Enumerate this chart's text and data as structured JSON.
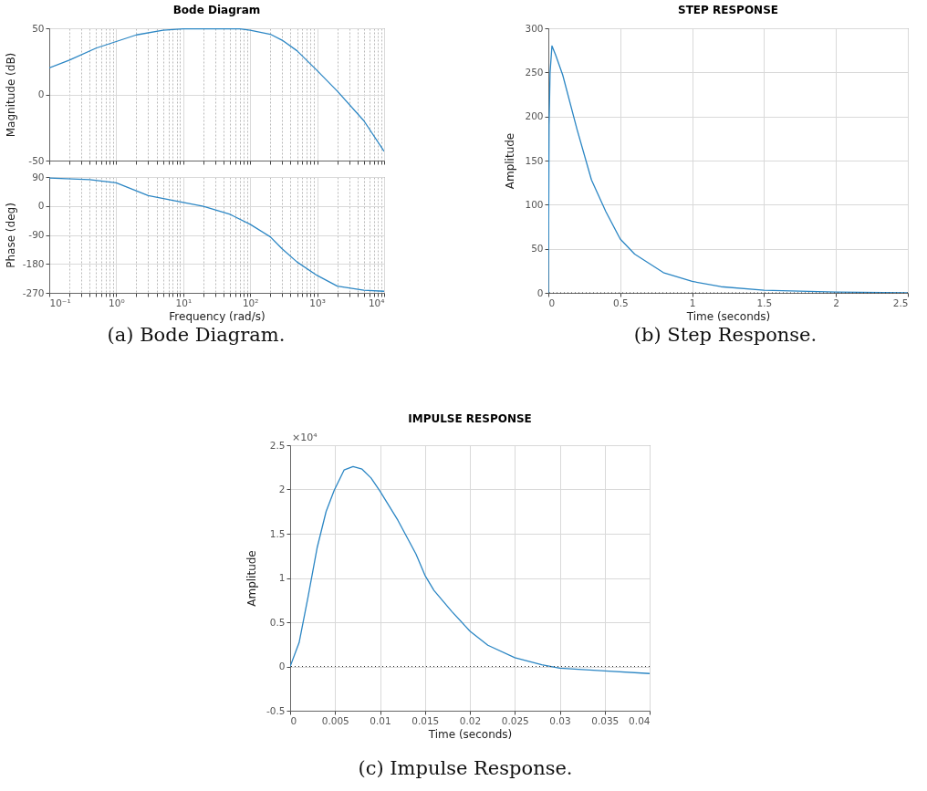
{
  "chart_data": [
    {
      "type": "line",
      "title": "Bode Diagram",
      "ylabel": "Magnitude (dB)",
      "log": "x",
      "grid": true,
      "tick_labels": "y",
      "x": [
        0.1,
        0.2,
        0.5,
        1,
        2,
        5,
        10,
        30,
        70,
        100,
        200,
        300,
        500,
        1000,
        2000,
        5000,
        10000
      ],
      "series": [
        {
          "color": "#2b86c4",
          "values": [
            20,
            26,
            35,
            40,
            45,
            48.5,
            49.5,
            49.8,
            49.5,
            48.5,
            45.5,
            41,
            33,
            18,
            2.5,
            -20,
            -43
          ]
        }
      ],
      "xlim": [
        0.1,
        10000
      ],
      "ylim": [
        -50,
        50
      ],
      "yticks": [
        -50,
        0,
        50
      ],
      "xticks": [
        {
          "value": 0.1,
          "label": null
        },
        {
          "value": 0.2,
          "label": null
        },
        {
          "value": 0.3,
          "label": null
        },
        {
          "value": 0.4,
          "label": null
        },
        {
          "value": 0.5,
          "label": null
        },
        {
          "value": 0.6,
          "label": null
        },
        {
          "value": 0.7,
          "label": null
        },
        {
          "value": 0.8,
          "label": null
        },
        {
          "value": 0.9,
          "label": null
        },
        {
          "value": 1,
          "label": null
        },
        {
          "value": 2,
          "label": null
        },
        {
          "value": 3,
          "label": null
        },
        {
          "value": 4,
          "label": null
        },
        {
          "value": 5,
          "label": null
        },
        {
          "value": 6,
          "label": null
        },
        {
          "value": 7,
          "label": null
        },
        {
          "value": 8,
          "label": null
        },
        {
          "value": 9,
          "label": null
        },
        {
          "value": 10,
          "label": null
        },
        {
          "value": 20,
          "label": null
        },
        {
          "value": 30,
          "label": null
        },
        {
          "value": 40,
          "label": null
        },
        {
          "value": 50,
          "label": null
        },
        {
          "value": 60,
          "label": null
        },
        {
          "value": 70,
          "label": null
        },
        {
          "value": 80,
          "label": null
        },
        {
          "value": 90,
          "label": null
        },
        {
          "value": 100,
          "label": null
        },
        {
          "value": 200,
          "label": null
        },
        {
          "value": 300,
          "label": null
        },
        {
          "value": 400,
          "label": null
        },
        {
          "value": 500,
          "label": null
        },
        {
          "value": 600,
          "label": null
        },
        {
          "value": 700,
          "label": null
        },
        {
          "value": 800,
          "label": null
        },
        {
          "value": 900,
          "label": null
        },
        {
          "value": 1000,
          "label": null
        },
        {
          "value": 2000,
          "label": null
        },
        {
          "value": 3000,
          "label": null
        },
        {
          "value": 4000,
          "label": null
        },
        {
          "value": 5000,
          "label": null
        },
        {
          "value": 6000,
          "label": null
        },
        {
          "value": 7000,
          "label": null
        },
        {
          "value": 8000,
          "label": null
        },
        {
          "value": 9000,
          "label": null
        },
        {
          "value": 10000,
          "label": null
        }
      ]
    },
    {
      "type": "line",
      "xlabel": "Frequency  (rad/s)",
      "ylabel": "Phase (deg)",
      "log": "x",
      "grid": true,
      "annotations": [
        "(a) Bode Diagram."
      ],
      "x": [
        0.1,
        0.4,
        1,
        3,
        10,
        20,
        50,
        100,
        200,
        300,
        500,
        1000,
        2000,
        5000,
        10000
      ],
      "series": [
        {
          "color": "#2b86c4",
          "values": [
            87,
            82,
            72,
            32,
            11,
            -1,
            -26,
            -57,
            -96,
            -133,
            -174,
            -216,
            -249,
            -262,
            -265
          ]
        }
      ],
      "xlim": [
        0.1,
        10000
      ],
      "ylim": [
        -270,
        90
      ],
      "yticks": [
        -270,
        -180,
        -90,
        0,
        90
      ],
      "xticks": [
        {
          "value": 0.1,
          "label": "10⁻¹"
        },
        {
          "value": 0.2,
          "label": null
        },
        {
          "value": 0.3,
          "label": null
        },
        {
          "value": 0.4,
          "label": null
        },
        {
          "value": 0.5,
          "label": null
        },
        {
          "value": 0.6,
          "label": null
        },
        {
          "value": 0.7,
          "label": null
        },
        {
          "value": 0.8,
          "label": null
        },
        {
          "value": 0.9,
          "label": null
        },
        {
          "value": 1,
          "label": "10⁰"
        },
        {
          "value": 2,
          "label": null
        },
        {
          "value": 3,
          "label": null
        },
        {
          "value": 4,
          "label": null
        },
        {
          "value": 5,
          "label": null
        },
        {
          "value": 6,
          "label": null
        },
        {
          "value": 7,
          "label": null
        },
        {
          "value": 8,
          "label": null
        },
        {
          "value": 9,
          "label": null
        },
        {
          "value": 10,
          "label": "10¹"
        },
        {
          "value": 20,
          "label": null
        },
        {
          "value": 30,
          "label": null
        },
        {
          "value": 40,
          "label": null
        },
        {
          "value": 50,
          "label": null
        },
        {
          "value": 60,
          "label": null
        },
        {
          "value": 70,
          "label": null
        },
        {
          "value": 80,
          "label": null
        },
        {
          "value": 90,
          "label": null
        },
        {
          "value": 100,
          "label": "10²"
        },
        {
          "value": 200,
          "label": null
        },
        {
          "value": 300,
          "label": null
        },
        {
          "value": 400,
          "label": null
        },
        {
          "value": 500,
          "label": null
        },
        {
          "value": 600,
          "label": null
        },
        {
          "value": 700,
          "label": null
        },
        {
          "value": 800,
          "label": null
        },
        {
          "value": 900,
          "label": null
        },
        {
          "value": 1000,
          "label": "10³"
        },
        {
          "value": 2000,
          "label": null
        },
        {
          "value": 3000,
          "label": null
        },
        {
          "value": 4000,
          "label": null
        },
        {
          "value": 5000,
          "label": null
        },
        {
          "value": 6000,
          "label": null
        },
        {
          "value": 7000,
          "label": null
        },
        {
          "value": 8000,
          "label": null
        },
        {
          "value": 9000,
          "label": null
        },
        {
          "value": 10000,
          "label": "10⁴"
        }
      ]
    },
    {
      "type": "line",
      "title": "STEP RESPONSE",
      "xlabel": "Time (seconds)",
      "ylabel": "Amplitude",
      "grid": true,
      "annotations": [
        "(b) Step Response."
      ],
      "x": [
        0,
        0.002,
        0.005,
        0.012,
        0.025,
        0.05,
        0.1,
        0.2,
        0.3,
        0.4,
        0.5,
        0.6,
        0.8,
        1.0,
        1.2,
        1.5,
        2,
        2.5
      ],
      "series": [
        {
          "color": "#2b86c4",
          "values": [
            0,
            70,
            190,
            250,
            280,
            270,
            247,
            185,
            128,
            92,
            61,
            44,
            23,
            13,
            7,
            3,
            1,
            0
          ]
        }
      ],
      "xlim": [
        0,
        2.5
      ],
      "ylim": [
        0,
        300
      ],
      "xticks": [
        0,
        0.5,
        1,
        1.5,
        2,
        2.5
      ],
      "yticks": [
        0,
        50,
        100,
        150,
        200,
        250,
        300
      ],
      "ref_lines": [
        {
          "axis": "y",
          "value": 0,
          "color": "#333333",
          "line_style": "dotted"
        }
      ]
    },
    {
      "type": "line",
      "title": "IMPULSE RESPONSE",
      "xlabel": "Time (seconds)",
      "ylabel": "Amplitude",
      "grid": true,
      "annotations": [
        "×10⁴",
        "(c) Impulse Response."
      ],
      "x": [
        0,
        0.001,
        0.002,
        0.003,
        0.004,
        0.0049,
        0.006,
        0.007,
        0.008,
        0.009,
        0.01,
        0.012,
        0.014,
        0.015,
        0.016,
        0.018,
        0.02,
        0.022,
        0.025,
        0.028,
        0.03,
        0.035,
        0.04
      ],
      "series": [
        {
          "color": "#2b86c4",
          "values": [
            0,
            0.27,
            0.79,
            1.34,
            1.75,
            1.99,
            2.22,
            2.26,
            2.23,
            2.13,
            1.98,
            1.65,
            1.27,
            1.03,
            0.86,
            0.62,
            0.4,
            0.24,
            0.1,
            0.02,
            -0.02,
            -0.05,
            -0.08
          ]
        }
      ],
      "xlim": [
        0,
        0.04
      ],
      "ylim": [
        -0.5,
        2.5
      ],
      "xticks": [
        0,
        0.005,
        0.01,
        0.015,
        0.02,
        0.025,
        0.03,
        0.035,
        0.04
      ],
      "yticks": [
        -0.5,
        0,
        0.5,
        1,
        1.5,
        2,
        2.5
      ],
      "ref_lines": [
        {
          "axis": "y",
          "value": 0,
          "color": "#333333",
          "line_style": "dotted"
        }
      ]
    }
  ]
}
